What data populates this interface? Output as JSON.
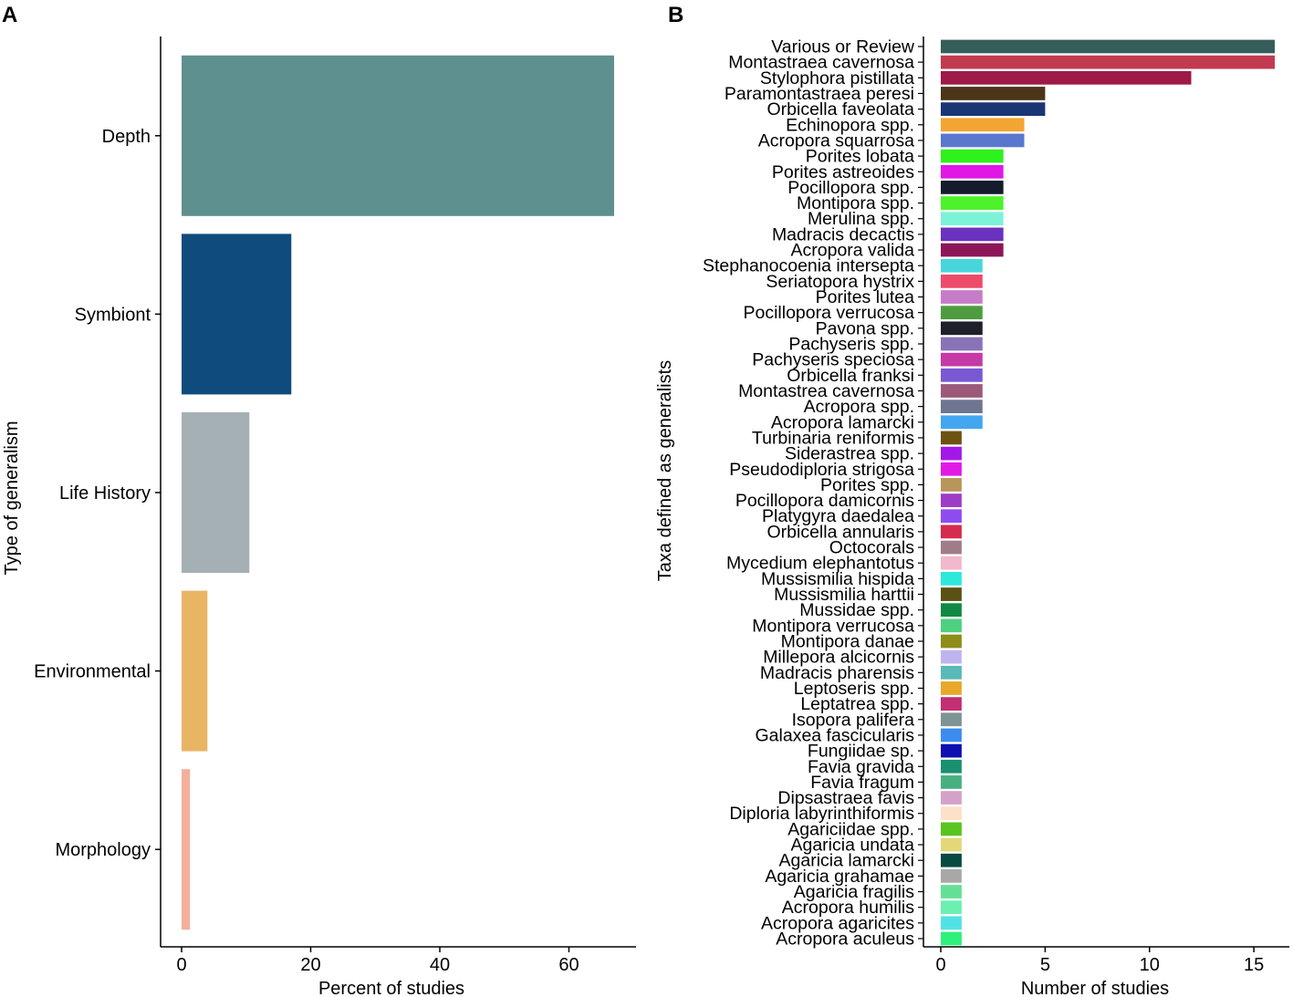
{
  "panels": {
    "a": "A",
    "b": "B"
  },
  "chart_data": [
    {
      "panel": "A",
      "type": "bar",
      "orientation": "horizontal",
      "xlabel": "Percent of studies",
      "ylabel": "Type of generalism",
      "xlim": [
        0,
        70
      ],
      "xticks": [
        0,
        20,
        40,
        60
      ],
      "grid": false,
      "categories": [
        "Depth",
        "Symbiont",
        "Life History",
        "Environmental",
        "Morphology"
      ],
      "values": [
        67,
        17,
        10.5,
        4,
        1.3
      ],
      "colors": [
        "#5e9090",
        "#104b7d",
        "#a5b0b4",
        "#e8b564",
        "#f3b09a"
      ]
    },
    {
      "panel": "B",
      "type": "bar",
      "orientation": "horizontal",
      "xlabel": "Number of studies",
      "ylabel": "Taxa defined as generalists",
      "xlim": [
        0,
        16.5
      ],
      "xticks": [
        0,
        5,
        10,
        15
      ],
      "grid": false,
      "categories": [
        "Various or Review",
        "Montastraea cavernosa",
        "Stylophora pistillata",
        "Paramontastraea peresi",
        "Orbicella faveolata",
        "Echinopora spp.",
        "Acropora squarrosa",
        "Porites lobata",
        "Porites astreoides",
        "Pocillopora spp.",
        "Montipora spp.",
        "Merulina spp.",
        "Madracis decactis",
        "Acropora valida",
        "Stephanocoenia intersepta",
        "Seriatopora hystrix",
        "Porites lutea",
        "Pocillopora verrucosa",
        "Pavona spp.",
        "Pachyseris spp.",
        "Pachyseris speciosa",
        "Orbicella franksi",
        "Montastrea cavernosa",
        "Acropora spp.",
        "Acropora lamarcki",
        "Turbinaria reniformis",
        "Siderastrea spp.",
        "Pseudodiploria strigosa",
        "Porites spp.",
        "Pocillopora damicornis",
        "Platygyra daedalea",
        "Orbicella annularis",
        "Octocorals",
        "Mycedium elephantotus",
        "Mussismilia hispida",
        "Mussismilia harttii",
        "Mussidae spp.",
        "Montipora verrucosa",
        "Montipora danae",
        "Millepora alcicornis",
        "Madracis pharensis",
        "Leptoseris spp.",
        "Leptatrea spp.",
        "Isopora palifera",
        "Galaxea fascicularis",
        "Fungiidae sp.",
        "Favia gravida",
        "Favia fragum",
        "Dipsastraea favis",
        "Diploria labyrinthiformis",
        "Agariciidae spp.",
        "Agaricia undata",
        "Agaricia lamarcki",
        "Agaricia grahamae",
        "Agaricia fragilis",
        "Acropora humilis",
        "Acropora agaricites",
        "Acropora aculeus"
      ],
      "values": [
        16,
        16,
        12,
        5,
        5,
        4,
        4,
        3,
        3,
        3,
        3,
        3,
        3,
        3,
        2,
        2,
        2,
        2,
        2,
        2,
        2,
        2,
        2,
        2,
        2,
        1,
        1,
        1,
        1,
        1,
        1,
        1,
        1,
        1,
        1,
        1,
        1,
        1,
        1,
        1,
        1,
        1,
        1,
        1,
        1,
        1,
        1,
        1,
        1,
        1,
        1,
        1,
        1,
        1,
        1,
        1,
        1,
        1
      ],
      "colors": [
        "#355e5b",
        "#c13a50",
        "#9e1a48",
        "#4a351a",
        "#1a3573",
        "#f2a532",
        "#5a77cf",
        "#2ef21d",
        "#e117e8",
        "#141c2b",
        "#4ef22a",
        "#7cf2d8",
        "#6a32bf",
        "#8d1658",
        "#48d6dc",
        "#ee4b6a",
        "#c77cc8",
        "#4e9c3e",
        "#1f1f2a",
        "#8a72b8",
        "#c53aa6",
        "#7a58d4",
        "#9c5a7a",
        "#6e7590",
        "#42a7f0",
        "#6e5212",
        "#a318e6",
        "#e21ae6",
        "#b8965a",
        "#9d3cc6",
        "#8e4cf0",
        "#d62a4e",
        "#a07c88",
        "#f2b8cc",
        "#2ee8dc",
        "#5a5214",
        "#108a42",
        "#4ed080",
        "#8e8c1a",
        "#c0b4f0",
        "#5ab8b8",
        "#e8a82a",
        "#c42e72",
        "#7e9494",
        "#3c8cf0",
        "#1010b0",
        "#1a9070",
        "#48b080",
        "#d4a2c8",
        "#fde0c8",
        "#5ac41e",
        "#e2d878",
        "#064a42",
        "#a8a8a8",
        "#64e096",
        "#6cf0b0",
        "#52e2e6",
        "#2ef07c"
      ]
    }
  ]
}
